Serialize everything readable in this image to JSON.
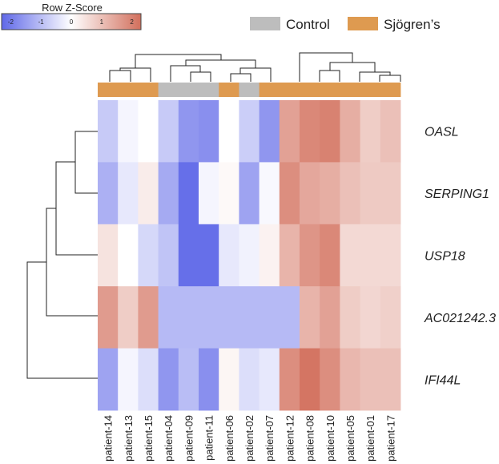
{
  "chart_data": {
    "type": "heatmap",
    "title": "",
    "color_key": {
      "title": "Row Z-Score",
      "ticks": [
        "-2",
        "-1",
        "0",
        "1",
        "2"
      ],
      "range": [
        -2.3,
        2.3
      ],
      "low_color": "#5f68e8",
      "mid_color": "#ffffff",
      "high_color": "#d26f5c"
    },
    "legend": [
      {
        "label": "Control",
        "color": "#bdbdbd"
      },
      {
        "label": "Sjögren’s",
        "color": "#de9a50"
      }
    ],
    "columns": [
      "patient-14",
      "patient-13",
      "patient-15",
      "patient-04",
      "patient-09",
      "patient-11",
      "patient-06",
      "patient-02",
      "patient-07",
      "patient-12",
      "patient-08",
      "patient-10",
      "patient-05",
      "patient-01",
      "patient-17"
    ],
    "column_groups": [
      "Sjögren’s",
      "Sjögren’s",
      "Sjögren’s",
      "Control",
      "Control",
      "Control",
      "Sjögren’s",
      "Control",
      "Sjögren’s",
      "Sjögren’s",
      "Sjögren’s",
      "Sjögren’s",
      "Sjögren’s",
      "Sjögren’s",
      "Sjögren’s"
    ],
    "rows": [
      "OASL",
      "SERPING1",
      "USP18",
      "AC021242.3",
      "IFI44L"
    ],
    "values": [
      [
        -0.8,
        -0.15,
        0.0,
        -0.8,
        -1.6,
        -1.7,
        0.0,
        -0.75,
        -1.6,
        1.5,
        1.9,
        2.0,
        1.3,
        0.8,
        1.0
      ],
      [
        -1.2,
        -0.35,
        0.3,
        -1.3,
        -2.2,
        -0.15,
        0.1,
        -1.4,
        -0.1,
        1.8,
        1.4,
        1.3,
        1.0,
        0.85,
        0.85
      ],
      [
        0.45,
        0.0,
        -0.6,
        -0.9,
        -2.2,
        -2.2,
        -0.35,
        -0.2,
        0.2,
        1.2,
        1.7,
        1.9,
        0.6,
        0.6,
        0.6
      ],
      [
        1.6,
        0.8,
        1.6,
        -1.05,
        -1.05,
        -1.05,
        -1.05,
        -1.05,
        -1.05,
        -1.05,
        1.2,
        1.5,
        0.8,
        0.65,
        0.75
      ],
      [
        -1.4,
        -0.15,
        -0.5,
        -1.6,
        -1.0,
        -1.7,
        0.15,
        -0.5,
        -0.35,
        1.8,
        2.2,
        1.8,
        1.15,
        1.0,
        1.0
      ]
    ]
  }
}
